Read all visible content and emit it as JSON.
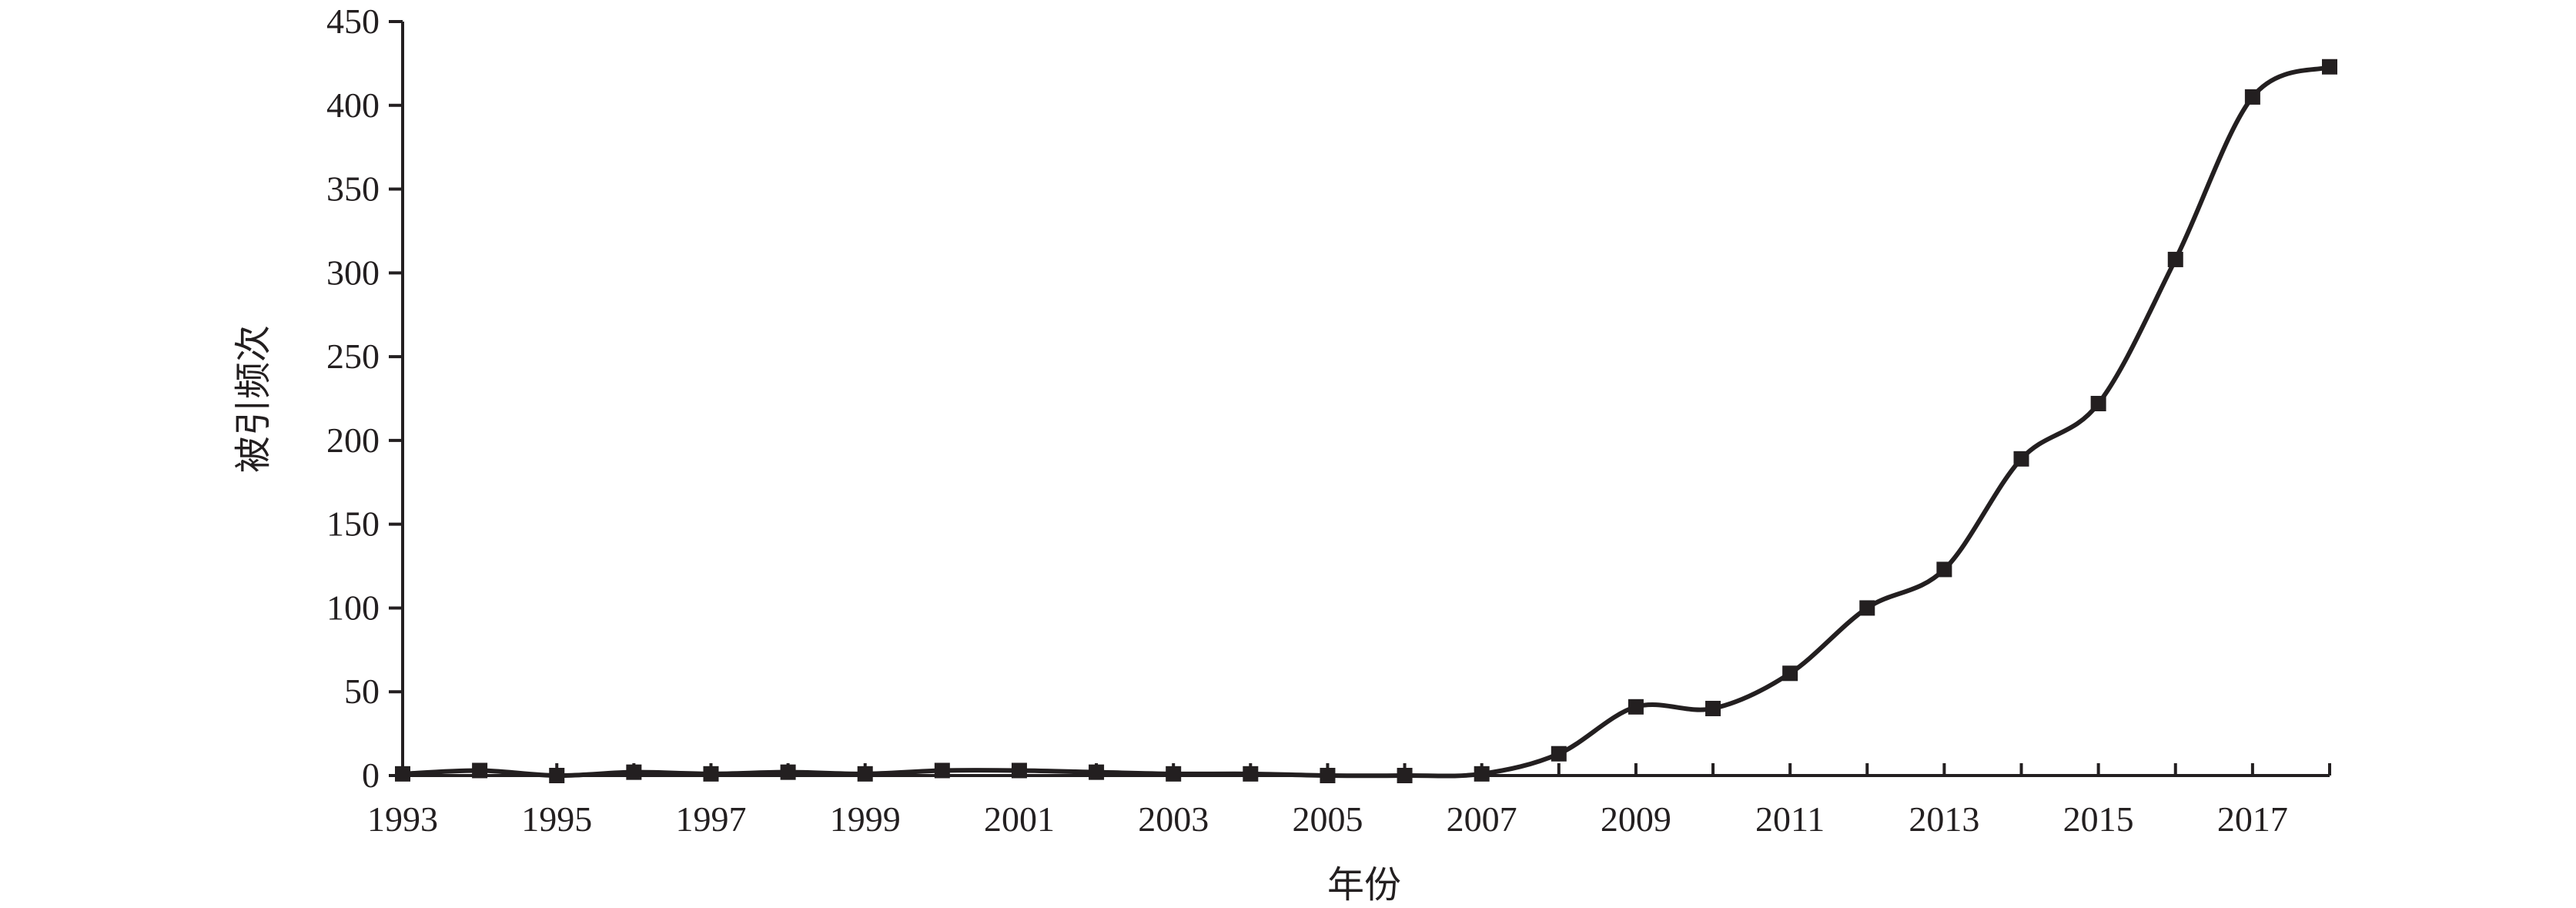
{
  "chart_data": {
    "type": "line",
    "title": "",
    "xlabel": "年份",
    "ylabel": "被引频次",
    "x": [
      1993,
      1994,
      1995,
      1996,
      1997,
      1998,
      1999,
      2000,
      2001,
      2002,
      2003,
      2004,
      2005,
      2006,
      2007,
      2008,
      2009,
      2010,
      2011,
      2012,
      2013,
      2014,
      2015,
      2016,
      2017,
      2018
    ],
    "series": [
      {
        "values": [
          1,
          3,
          0,
          2,
          1,
          2,
          1,
          3,
          3,
          2,
          1,
          1,
          0,
          0,
          1,
          13,
          41,
          40,
          61,
          100,
          123,
          189,
          222,
          308,
          405,
          423
        ]
      }
    ],
    "x_tick_labels": [
      "1993",
      "1995",
      "1997",
      "1999",
      "2001",
      "2003",
      "2005",
      "2007",
      "2009",
      "2011",
      "2013",
      "2015",
      "2017"
    ],
    "y_tick_labels": [
      "0",
      "50",
      "100",
      "150",
      "200",
      "250",
      "300",
      "350",
      "400",
      "450"
    ],
    "xlim": [
      1993,
      2018
    ],
    "ylim": [
      0,
      450
    ],
    "grid": false,
    "legend": "none",
    "marker": "square",
    "line_style": "smooth",
    "color": "#231f20"
  }
}
